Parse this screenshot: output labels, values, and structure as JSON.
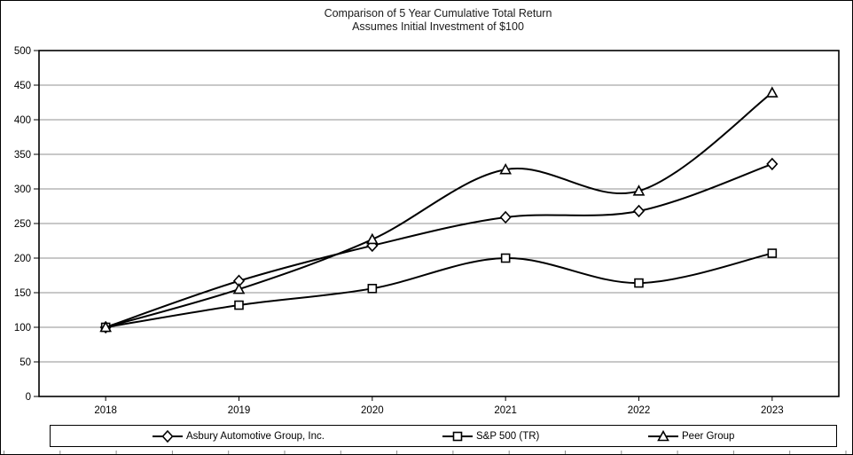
{
  "chart_data": {
    "type": "line",
    "title": "Comparison of 5 Year Cumulative Total Return",
    "subtitle": "Assumes Initial Investment of $100",
    "categories": [
      "2018",
      "2019",
      "2020",
      "2021",
      "2022",
      "2023"
    ],
    "series": [
      {
        "name": "Asbury Automotive Group, Inc.",
        "marker": "diamond",
        "values": [
          100,
          167,
          218,
          259,
          268,
          336
        ]
      },
      {
        "name": "S&P 500 (TR)",
        "marker": "square",
        "values": [
          100,
          132,
          156,
          200,
          164,
          207
        ]
      },
      {
        "name": "Peer Group",
        "marker": "triangle",
        "values": [
          100,
          155,
          227,
          328,
          297,
          439
        ]
      }
    ],
    "ylim": [
      0,
      500
    ],
    "yticks": [
      0,
      50,
      100,
      150,
      200,
      250,
      300,
      350,
      400,
      450,
      500
    ],
    "grid": "horizontal",
    "smooth": true,
    "legend_position": "bottom",
    "line_color": "#000000",
    "marker_fill": "#ffffff",
    "gridline_color": "#909090"
  }
}
